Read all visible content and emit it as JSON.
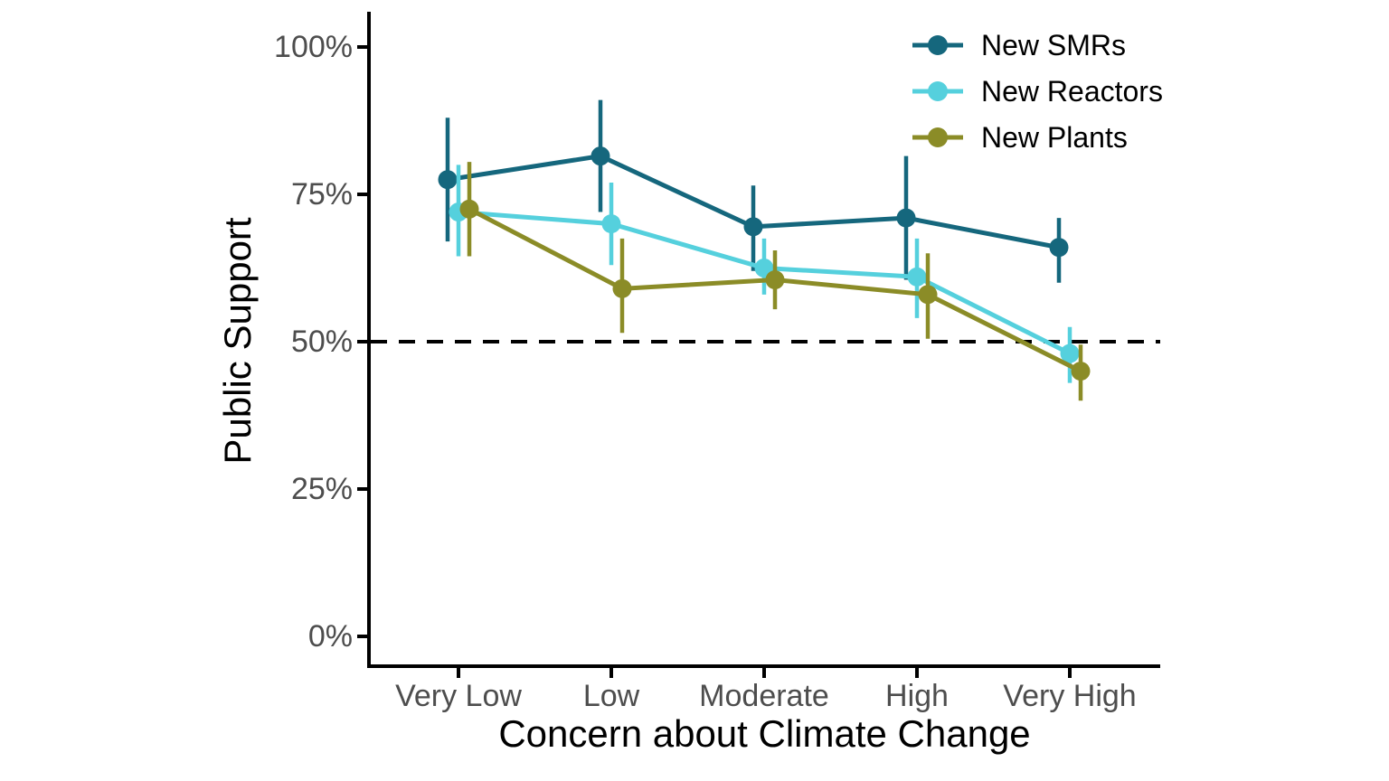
{
  "chart_data": {
    "type": "line",
    "title": "",
    "xlabel": "Concern about Climate Change",
    "ylabel": "Public Support",
    "categories": [
      "Very Low",
      "Low",
      "Moderate",
      "High",
      "Very High"
    ],
    "y_tick_labels": [
      "100%",
      "75%",
      "50%",
      "25%",
      "0%"
    ],
    "ylim": [
      0,
      100
    ],
    "grid": false,
    "legend_position": "top-right",
    "reference_line": {
      "y": 50,
      "style": "dashed",
      "color": "#000000"
    },
    "axis_color": "#000000",
    "tick_label_color": "#4d4d4d",
    "series": [
      {
        "name": "New SMRs",
        "color": "#15677d",
        "values": [
          77.5,
          81.5,
          69.5,
          71,
          66
        ],
        "ci_low": [
          67,
          72,
          62,
          60.5,
          60
        ],
        "ci_high": [
          88,
          91,
          76.5,
          81.5,
          71
        ]
      },
      {
        "name": "New Reactors",
        "color": "#55d0dd",
        "values": [
          72,
          70,
          62.5,
          61,
          48
        ],
        "ci_low": [
          64.5,
          63,
          58,
          54,
          43
        ],
        "ci_high": [
          80,
          77,
          67.5,
          67.5,
          52.5
        ]
      },
      {
        "name": "New Plants",
        "color": "#8b8c27",
        "values": [
          72.5,
          59,
          60.5,
          58,
          45
        ],
        "ci_low": [
          64.5,
          51.5,
          55.5,
          50.5,
          40
        ],
        "ci_high": [
          80.5,
          67.5,
          65.5,
          65,
          49.5
        ]
      }
    ]
  }
}
